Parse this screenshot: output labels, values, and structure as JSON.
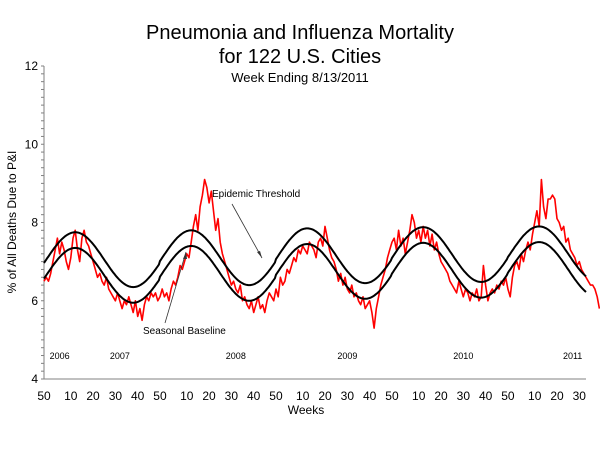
{
  "chart_data": {
    "type": "line",
    "title": "Pneumonia and Influenza Mortality",
    "subtitle": "for 122 U.S. Cities",
    "subsubtitle": "Week Ending  8/13/2011",
    "xlabel": "Weeks",
    "ylabel": "% of All Deaths Due to P&I",
    "ylim": [
      4,
      12
    ],
    "yticks": [
      4,
      6,
      8,
      10,
      12
    ],
    "y_minor_step": 0.2,
    "x_range_weeks": [
      0,
      243
    ],
    "x_ticks": [
      {
        "week": 0,
        "label": "50"
      },
      {
        "week": 12,
        "label": "10"
      },
      {
        "week": 22,
        "label": "20"
      },
      {
        "week": 32,
        "label": "30"
      },
      {
        "week": 42,
        "label": "40"
      },
      {
        "week": 52,
        "label": "50"
      },
      {
        "week": 64,
        "label": "10"
      },
      {
        "week": 74,
        "label": "20"
      },
      {
        "week": 84,
        "label": "30"
      },
      {
        "week": 94,
        "label": "40"
      },
      {
        "week": 104,
        "label": "50"
      },
      {
        "week": 116,
        "label": "10"
      },
      {
        "week": 126,
        "label": "20"
      },
      {
        "week": 136,
        "label": "30"
      },
      {
        "week": 146,
        "label": "40"
      },
      {
        "week": 156,
        "label": "50"
      },
      {
        "week": 168,
        "label": "10"
      },
      {
        "week": 178,
        "label": "20"
      },
      {
        "week": 188,
        "label": "30"
      },
      {
        "week": 198,
        "label": "40"
      },
      {
        "week": 208,
        "label": "50"
      },
      {
        "week": 220,
        "label": "10"
      },
      {
        "week": 230,
        "label": "20"
      },
      {
        "week": 240,
        "label": "30"
      }
    ],
    "year_labels": [
      {
        "week": 7,
        "label": "2006"
      },
      {
        "week": 34,
        "label": "2007"
      },
      {
        "week": 86,
        "label": "2008"
      },
      {
        "week": 136,
        "label": "2009"
      },
      {
        "week": 188,
        "label": "2010"
      },
      {
        "week": 237,
        "label": "2011"
      }
    ],
    "annotations": [
      {
        "text": "Epidemic Threshold",
        "points_to_series": "Epidemic Threshold",
        "arrow_target_week": 128
      },
      {
        "text": "Seasonal Baseline",
        "points_to_series": "Seasonal Baseline",
        "arrow_target_week": 70
      }
    ],
    "series": [
      {
        "name": "Seasonal Baseline",
        "color": "#000000",
        "model": "sinusoid",
        "period_weeks": 52,
        "peak_week": 14,
        "mean": [
          6.65,
          6.7,
          6.75,
          6.78,
          6.8
        ],
        "amplitude": 0.7,
        "season_start_weeks": [
          0,
          52,
          104,
          156,
          208
        ]
      },
      {
        "name": "Epidemic Threshold",
        "color": "#000000",
        "offset_from_baseline": 0.4
      },
      {
        "name": "Observed P&I %",
        "color": "#ff0000",
        "values": [
          6.5,
          6.6,
          6.5,
          6.7,
          7.0,
          7.3,
          7.6,
          7.2,
          7.5,
          7.3,
          7.0,
          6.8,
          7.1,
          7.6,
          7.8,
          7.3,
          7.0,
          7.6,
          7.8,
          7.5,
          7.4,
          7.2,
          7.0,
          6.8,
          6.6,
          6.7,
          6.5,
          6.4,
          6.6,
          6.3,
          6.2,
          6.1,
          6.0,
          6.2,
          6.0,
          5.8,
          6.0,
          5.9,
          6.1,
          5.9,
          5.7,
          6.0,
          5.6,
          5.8,
          5.5,
          5.9,
          6.1,
          6.0,
          6.2,
          6.1,
          6.2,
          6.0,
          6.1,
          6.3,
          6.1,
          6.2,
          6.0,
          6.3,
          6.5,
          6.4,
          6.6,
          6.9,
          6.8,
          7.0,
          7.2,
          7.1,
          7.5,
          7.9,
          8.2,
          7.8,
          8.4,
          8.7,
          9.1,
          8.9,
          8.5,
          8.8,
          8.3,
          7.8,
          8.1,
          7.5,
          7.2,
          7.0,
          6.8,
          6.6,
          6.4,
          6.5,
          6.3,
          6.2,
          6.4,
          6.0,
          6.1,
          5.9,
          5.8,
          6.0,
          5.7,
          5.9,
          6.1,
          5.8,
          5.9,
          5.7,
          6.0,
          6.2,
          6.1,
          6.0,
          6.3,
          6.1,
          6.6,
          6.4,
          6.5,
          6.8,
          6.7,
          6.9,
          7.1,
          7.0,
          7.3,
          7.2,
          7.4,
          7.3,
          7.2,
          7.5,
          7.4,
          7.3,
          7.1,
          7.5,
          7.6,
          7.4,
          7.9,
          7.6,
          7.3,
          7.1,
          7.0,
          6.8,
          6.5,
          6.7,
          6.4,
          6.6,
          6.3,
          6.2,
          6.4,
          6.1,
          6.2,
          6.0,
          5.9,
          6.1,
          5.8,
          5.9,
          6.0,
          5.7,
          5.3,
          5.8,
          6.1,
          6.4,
          6.6,
          6.8,
          7.1,
          7.3,
          7.5,
          7.6,
          7.3,
          7.8,
          7.4,
          7.6,
          7.2,
          7.5,
          7.8,
          8.2,
          8.0,
          7.6,
          7.8,
          7.5,
          7.9,
          7.6,
          7.8,
          7.4,
          7.7,
          7.3,
          7.5,
          7.2,
          7.0,
          6.9,
          6.8,
          6.7,
          6.5,
          6.4,
          6.3,
          6.2,
          6.5,
          6.3,
          6.1,
          6.3,
          6.2,
          6.0,
          6.2,
          6.1,
          6.3,
          6.0,
          6.1,
          6.9,
          6.4,
          6.0,
          6.2,
          6.3,
          6.2,
          6.4,
          6.3,
          6.5,
          6.4,
          6.6,
          6.3,
          6.1,
          6.6,
          6.9,
          7.0,
          6.8,
          7.2,
          7.0,
          7.3,
          7.5,
          7.3,
          7.7,
          8.0,
          8.3,
          7.9,
          9.1,
          8.4,
          8.1,
          8.6,
          8.6,
          8.7,
          8.6,
          8.1,
          8.0,
          7.8,
          7.9,
          7.5,
          7.6,
          7.3,
          7.2,
          7.1,
          6.9,
          7.0,
          6.8,
          6.7,
          6.6,
          6.5,
          6.4,
          6.4,
          6.3,
          6.1,
          5.8
        ]
      }
    ],
    "grid": false,
    "legend": "none"
  }
}
